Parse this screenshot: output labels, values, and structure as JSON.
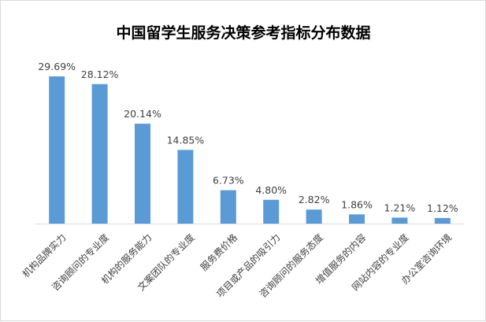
{
  "chart_data": {
    "type": "bar",
    "title": "中国留学生服务决策参考指标分布数据",
    "categories": [
      "机构品牌实力",
      "咨询顾问的专业度",
      "机构的服务能力",
      "文案团队的专业度",
      "服务费价格",
      "项目或产品的吸引力",
      "咨询顾问的服务态度",
      "增值服务的内容",
      "网站内容的专业度",
      "办公室咨询环境"
    ],
    "values": [
      29.69,
      28.12,
      20.14,
      14.85,
      6.73,
      4.8,
      2.82,
      1.86,
      1.21,
      1.12
    ],
    "data_labels": [
      "29.69%",
      "28.12%",
      "20.14%",
      "14.85%",
      "6.73%",
      "4.80%",
      "2.82%",
      "1.86%",
      "1.21%",
      "1.12%"
    ],
    "ylim": [
      0,
      30
    ],
    "grid": false,
    "legend": "none",
    "xlabel": "",
    "ylabel": "",
    "colors": {
      "bar": "#5b9bd5",
      "axis": "#d9d9d9",
      "text": "#404040"
    }
  }
}
